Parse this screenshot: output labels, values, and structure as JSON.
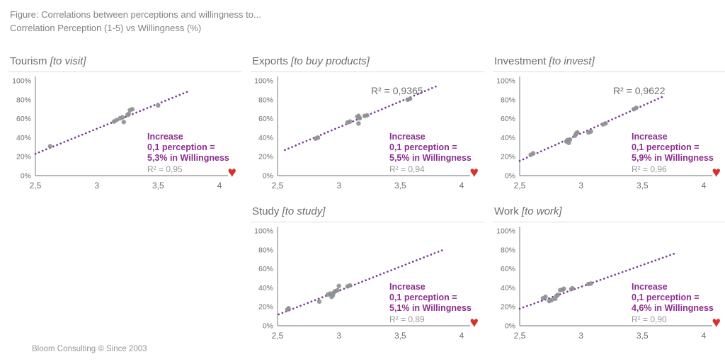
{
  "header": {
    "line1": "Figure: Correlations between perceptions and willingness to...",
    "line2": "Correlation Perception (1-5) vs Willingness (%)"
  },
  "footer": {
    "text": "Bloom Consulting © Since 2003"
  },
  "icons": {
    "heart": "♥"
  },
  "colors": {
    "annotation_purple": "#8c2d90",
    "trend_purple": "#7a3a94",
    "point_gray": "#8e8f92",
    "axis_gray": "#a0a1a3",
    "tick_gray": "#6d6e71",
    "title_gray": "#6d6e71",
    "header_gray": "#808285",
    "r2_gray": "#97989b",
    "heart_red": "#d6312e"
  },
  "chart_data": [
    {
      "type": "scatter",
      "id": "tourism",
      "title": "Tourism",
      "title_bracket": "[to visit]",
      "xlim": [
        2.5,
        4.0
      ],
      "ylim": [
        0,
        100
      ],
      "xtick_values": [
        2.5,
        3.0,
        3.5,
        4.0
      ],
      "xtick_labels": [
        "2,5",
        "3",
        "3,5",
        "4"
      ],
      "ytick_values": [
        0,
        20,
        40,
        60,
        80,
        100
      ],
      "ytick_labels": [
        "0%",
        "20%",
        "40%",
        "60%",
        "80%",
        "100%"
      ],
      "grid": false,
      "points": [
        [
          2.62,
          31
        ],
        [
          3.14,
          57
        ],
        [
          3.16,
          58.5
        ],
        [
          3.19,
          60.5
        ],
        [
          3.21,
          61.5
        ],
        [
          3.22,
          56.5
        ],
        [
          3.25,
          64
        ],
        [
          3.26,
          65
        ],
        [
          3.27,
          69
        ],
        [
          3.29,
          70
        ],
        [
          3.5,
          74
        ]
      ],
      "trend": {
        "style": "dotted",
        "x1": 2.5,
        "y1": 23,
        "x2": 3.75,
        "y2": 89
      },
      "annotation": {
        "line1": "Increase",
        "line2": "0,1 perception =",
        "line3": "5,3% in Willingness",
        "r2": "R² = 0,95"
      }
    },
    {
      "type": "scatter",
      "id": "exports",
      "title": "Exports",
      "title_bracket": "[to buy products]",
      "r2_label": "R² = 0,9365",
      "xlim": [
        2.5,
        4.0
      ],
      "ylim": [
        0,
        100
      ],
      "xtick_values": [
        2.5,
        3.0,
        3.5,
        4.0
      ],
      "xtick_labels": [
        "2,5",
        "3",
        "3,5",
        "4"
      ],
      "ytick_values": [
        0,
        20,
        40,
        60,
        80,
        100
      ],
      "ytick_labels": [
        "0%",
        "20%",
        "40%",
        "60%",
        "80%",
        "100%"
      ],
      "grid": false,
      "points": [
        [
          2.81,
          39
        ],
        [
          2.83,
          40
        ],
        [
          3.07,
          56
        ],
        [
          3.09,
          57
        ],
        [
          3.15,
          62
        ],
        [
          3.16,
          63
        ],
        [
          3.17,
          60.5
        ],
        [
          3.16,
          55
        ],
        [
          3.21,
          63
        ],
        [
          3.23,
          63.5
        ],
        [
          3.56,
          80
        ],
        [
          3.58,
          81
        ]
      ],
      "trend": {
        "style": "dotted",
        "x1": 2.56,
        "y1": 27,
        "x2": 3.81,
        "y2": 95
      },
      "annotation": {
        "line1": "Increase",
        "line2": "0,1 perception =",
        "line3": "5,5% in Willingness",
        "r2": "R² = 0,94"
      }
    },
    {
      "type": "scatter",
      "id": "investment",
      "title": "Investment",
      "title_bracket": "[to invest]",
      "r2_label": "R² = 0,9622",
      "xlim": [
        2.5,
        4.0
      ],
      "ylim": [
        0,
        100
      ],
      "xtick_values": [
        2.5,
        3.0,
        3.5,
        4.0
      ],
      "xtick_labels": [
        "2,5",
        "3",
        "3,5",
        "4"
      ],
      "ytick_values": [
        0,
        20,
        40,
        60,
        80,
        100
      ],
      "ytick_labels": [
        "0%",
        "20%",
        "40%",
        "60%",
        "80%",
        "100%"
      ],
      "grid": false,
      "points": [
        [
          2.59,
          22
        ],
        [
          2.61,
          23.5
        ],
        [
          2.88,
          36
        ],
        [
          2.89,
          37.5
        ],
        [
          2.9,
          34.5
        ],
        [
          2.91,
          38
        ],
        [
          2.95,
          42
        ],
        [
          2.96,
          44.5
        ],
        [
          2.97,
          45.5
        ],
        [
          3.06,
          45.5
        ],
        [
          3.08,
          46.5
        ],
        [
          3.18,
          54
        ],
        [
          3.2,
          55
        ],
        [
          3.43,
          70
        ],
        [
          3.45,
          71.5
        ]
      ],
      "trend": {
        "style": "dotted",
        "x1": 2.5,
        "y1": 15.5,
        "x2": 3.68,
        "y2": 84
      },
      "annotation": {
        "line1": "Increase",
        "line2": "0,1 perception =",
        "line3": "5,9% in Willingness",
        "r2": "R² = 0,96"
      }
    },
    {
      "type": "scatter",
      "id": "study",
      "title": "Study",
      "title_bracket": "[to study]",
      "xlim": [
        2.5,
        4.0
      ],
      "ylim": [
        0,
        100
      ],
      "xtick_values": [
        2.5,
        3.0,
        3.5,
        4.0
      ],
      "xtick_labels": [
        "2,5",
        "3",
        "3,5",
        "4"
      ],
      "ytick_values": [
        0,
        20,
        40,
        60,
        80,
        100
      ],
      "ytick_labels": [
        "0%",
        "20%",
        "40%",
        "60%",
        "80%",
        "100%"
      ],
      "grid": false,
      "points": [
        [
          2.58,
          17
        ],
        [
          2.59,
          18.5
        ],
        [
          2.84,
          25.5
        ],
        [
          2.91,
          33
        ],
        [
          2.93,
          34
        ],
        [
          2.94,
          30.5
        ],
        [
          2.95,
          32
        ],
        [
          2.96,
          35
        ],
        [
          2.97,
          36.5
        ],
        [
          2.99,
          37.5
        ],
        [
          3.0,
          42
        ],
        [
          3.07,
          41.5
        ],
        [
          3.09,
          42.5
        ]
      ],
      "trend": {
        "style": "dotted",
        "x1": 2.51,
        "y1": 12,
        "x2": 3.85,
        "y2": 80
      },
      "annotation": {
        "line1": "Increase",
        "line2": "0,1 perception =",
        "line3": "5,1% in Willingness",
        "r2": "R² = 0,89"
      }
    },
    {
      "type": "scatter",
      "id": "work",
      "title": "Work",
      "title_bracket": "[to work]",
      "xlim": [
        2.5,
        4.0
      ],
      "ylim": [
        0,
        100
      ],
      "xtick_values": [
        2.5,
        3.0,
        3.5,
        4.0
      ],
      "xtick_labels": [
        "2,5",
        "3",
        "3,5",
        "4"
      ],
      "ytick_values": [
        0,
        20,
        40,
        60,
        80,
        100
      ],
      "ytick_labels": [
        "0%",
        "20%",
        "40%",
        "60%",
        "80%",
        "100%"
      ],
      "grid": false,
      "points": [
        [
          2.69,
          29
        ],
        [
          2.71,
          30.5
        ],
        [
          2.74,
          26
        ],
        [
          2.76,
          27
        ],
        [
          2.79,
          28.5
        ],
        [
          2.8,
          31.5
        ],
        [
          2.81,
          32.5
        ],
        [
          2.83,
          37.5
        ],
        [
          2.85,
          38
        ],
        [
          2.86,
          39
        ],
        [
          2.92,
          38.5
        ],
        [
          2.93,
          39.5
        ],
        [
          3.06,
          44
        ],
        [
          3.08,
          44.5
        ]
      ],
      "trend": {
        "style": "dotted",
        "x1": 2.5,
        "y1": 18,
        "x2": 3.76,
        "y2": 76
      },
      "annotation": {
        "line1": "Increase",
        "line2": "0,1 perception =",
        "line3": "4,6% in Willingness",
        "r2": "R² = 0,90"
      }
    }
  ]
}
